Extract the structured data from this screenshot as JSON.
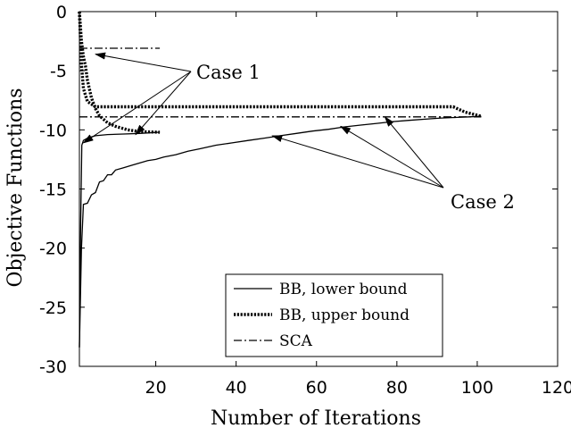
{
  "chart_data": {
    "type": "line",
    "title": "",
    "xlabel": "Number of Iterations",
    "ylabel": "Objective Functions",
    "xlim": [
      1,
      120
    ],
    "ylim": [
      -30,
      0
    ],
    "xticks": [
      20,
      40,
      60,
      80,
      100,
      120
    ],
    "yticks": [
      0,
      -5,
      -10,
      -15,
      -20,
      -25,
      -30
    ],
    "grid": false,
    "legend": "bottom-right",
    "annotations": [
      {
        "text": "Case 1",
        "points_to": [
          [
            5,
            -3.6
          ],
          [
            2,
            -11.1
          ],
          [
            15,
            -10.4
          ]
        ]
      },
      {
        "text": "Case 2",
        "points_to": [
          [
            77,
            -8.9
          ],
          [
            66,
            -9.7
          ],
          [
            49,
            -10.5
          ]
        ]
      }
    ],
    "series": [
      {
        "name": "BB, lower bound",
        "style": "solid",
        "color": "#000000",
        "x": [
          1,
          1.5,
          2,
          3,
          4,
          5,
          6,
          7,
          8,
          9,
          10,
          12,
          14,
          16,
          18,
          20,
          22,
          25,
          28,
          31,
          35,
          39,
          43,
          47,
          51,
          55,
          59,
          63,
          67,
          71,
          75,
          79,
          83,
          87,
          91,
          95,
          98,
          101
        ],
        "y": [
          -28.4,
          -20,
          -16.3,
          -16.2,
          -15.5,
          -15.3,
          -14.4,
          -14.3,
          -13.8,
          -13.8,
          -13.4,
          -13.2,
          -13.0,
          -12.8,
          -12.6,
          -12.5,
          -12.3,
          -12.1,
          -11.8,
          -11.6,
          -11.3,
          -11.1,
          -10.9,
          -10.7,
          -10.5,
          -10.3,
          -10.1,
          -9.95,
          -9.75,
          -9.6,
          -9.45,
          -9.3,
          -9.2,
          -9.1,
          -9.0,
          -8.95,
          -8.9,
          -8.85
        ]
      },
      {
        "name": "BB, upper bound",
        "style": "dotted",
        "color": "#000000",
        "x": [
          1,
          1.5,
          2,
          3,
          5,
          94,
          97,
          101
        ],
        "y": [
          0,
          -4.5,
          -6.5,
          -7.6,
          -8.05,
          -8.05,
          -8.5,
          -8.85
        ]
      },
      {
        "name": "SCA",
        "style": "dash-dot",
        "color": "#000000",
        "x": [
          1,
          101
        ],
        "y": [
          -8.9,
          -8.9
        ]
      },
      {
        "name": "",
        "style": "solid",
        "color": "#000000",
        "x": [
          1,
          1.3,
          1.6,
          2,
          3,
          5,
          8,
          12,
          16,
          21
        ],
        "y": [
          -28.4,
          -18,
          -11.3,
          -10.9,
          -10.7,
          -10.5,
          -10.4,
          -10.35,
          -10.3,
          -10.2
        ]
      },
      {
        "name": "",
        "style": "dotted",
        "color": "#000000",
        "x": [
          1,
          1.5,
          2,
          2.5,
          3,
          4,
          5,
          6,
          8,
          10,
          13,
          16,
          21
        ],
        "y": [
          0,
          -2.5,
          -3.8,
          -4.6,
          -5.8,
          -7.3,
          -8.2,
          -8.8,
          -9.4,
          -9.7,
          -10.0,
          -10.15,
          -10.2
        ]
      },
      {
        "name": "",
        "style": "dash-dot",
        "color": "#000000",
        "x": [
          1,
          21
        ],
        "y": [
          -3.1,
          -3.1
        ]
      }
    ]
  }
}
